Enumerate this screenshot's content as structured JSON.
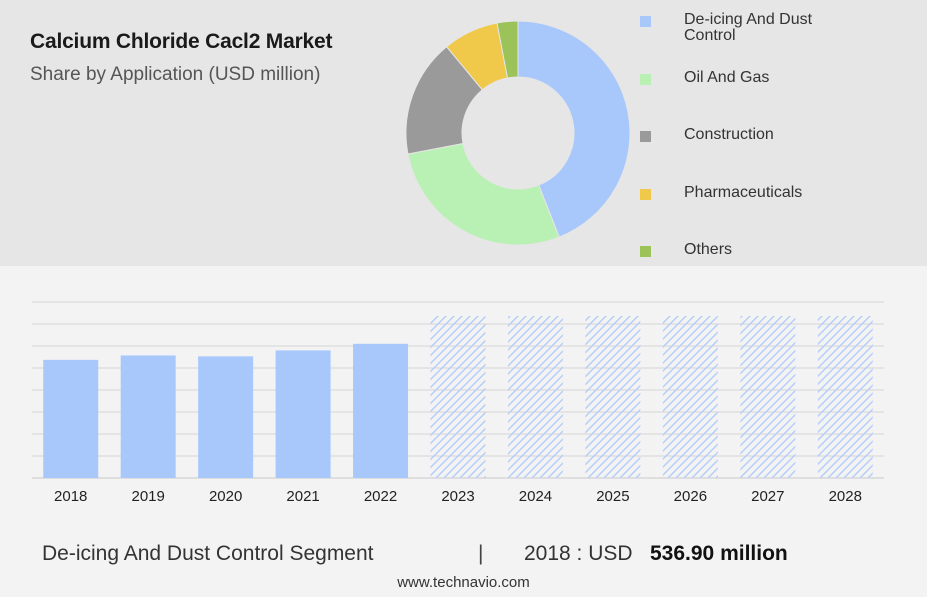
{
  "header": {
    "title": "Calcium Chloride Cacl2 Market",
    "subtitle": "Share by Application (USD million)"
  },
  "colors": {
    "historical_bar": "#a8c8fb",
    "forecast_hatch": "#b3cdf8"
  },
  "chart_data": [
    {
      "type": "pie",
      "donut": true,
      "categories": [
        "De-icing And Dust Control",
        "Oil And Gas",
        "Construction",
        "Pharmaceuticals",
        "Others"
      ],
      "values": [
        44,
        28,
        17,
        8,
        3
      ],
      "colors": [
        "#a8c8fb",
        "#b9f0b3",
        "#9a9a9a",
        "#f0c94a",
        "#9cc25a"
      ],
      "legend": "right"
    },
    {
      "type": "bar",
      "categories": [
        "2018",
        "2019",
        "2020",
        "2021",
        "2022",
        "2023",
        "2024",
        "2025",
        "2026",
        "2027",
        "2028"
      ],
      "values": [
        536.9,
        557,
        553,
        580,
        610,
        null,
        null,
        null,
        null,
        null,
        null
      ],
      "forecast": [
        false,
        false,
        false,
        false,
        false,
        true,
        true,
        true,
        true,
        true,
        true
      ],
      "ylim": [
        0,
        800
      ],
      "grid": true
    }
  ],
  "footer": {
    "segment": "De-icing And Dust Control Segment",
    "separator": "|",
    "year_label": "2018 : USD",
    "value": "536.90 million"
  },
  "source": "www.technavio.com"
}
